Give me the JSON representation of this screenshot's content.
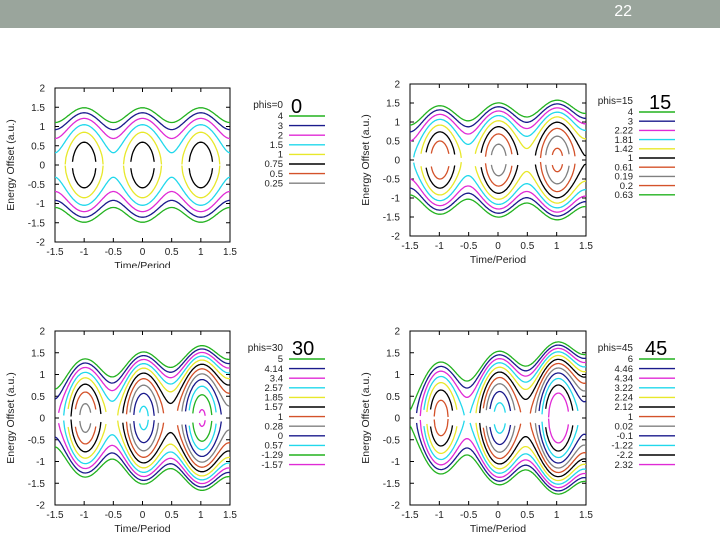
{
  "slide_number": "22",
  "chart_data": [
    {
      "type": "line",
      "panel_label": "0",
      "legend_title": "phis=0",
      "xlabel": "Time/Period",
      "ylabel": "Energy Offset (a.u.)",
      "xlim": [
        -1.5,
        1.5
      ],
      "ylim": [
        -2,
        2
      ],
      "xticks": [
        "-1.5",
        "-1",
        "-0.5",
        "0",
        "0.5",
        "1",
        "1.5"
      ],
      "yticks": [
        "2",
        "1.5",
        "1",
        "0.5",
        "0",
        "-0.5",
        "-1",
        "-1.5",
        "-2"
      ],
      "phi_s_deg": 0,
      "series": [
        {
          "name": "4",
          "color": "#22b21f",
          "level": 4
        },
        {
          "name": "3",
          "color": "#1a1a8c",
          "level": 3
        },
        {
          "name": "2",
          "color": "#e02ad6",
          "level": 2
        },
        {
          "name": "1.5",
          "color": "#21d8ec",
          "level": 1.5
        },
        {
          "name": "1",
          "color": "#e8e82a",
          "level": 1
        },
        {
          "name": "0.75",
          "color": "#000000",
          "level": 0.75
        },
        {
          "name": "0.5",
          "color": "#d4522a",
          "level": 0.5
        },
        {
          "name": "0.25",
          "color": "#808080",
          "level": 0.25
        }
      ]
    },
    {
      "type": "line",
      "panel_label": "15",
      "legend_title": "phis=15",
      "xlabel": "Time/Period",
      "ylabel": "Energy Offset (a.u.)",
      "xlim": [
        -1.5,
        1.5
      ],
      "ylim": [
        -2,
        2
      ],
      "xticks": [
        "-1.5",
        "-1",
        "-0.5",
        "0",
        "0.5",
        "1",
        "1.5"
      ],
      "yticks": [
        "2",
        "1.5",
        "1",
        "0.5",
        "0",
        "-0.5",
        "-1",
        "-1.5",
        "-2"
      ],
      "phi_s_deg": 15,
      "series": [
        {
          "name": "4",
          "color": "#22b21f",
          "level": 4
        },
        {
          "name": "3",
          "color": "#1a1a8c",
          "level": 3
        },
        {
          "name": "2.22",
          "color": "#e02ad6",
          "level": 2.22
        },
        {
          "name": "1.81",
          "color": "#21d8ec",
          "level": 1.81
        },
        {
          "name": "1.42",
          "color": "#e8e82a",
          "level": 1.42
        },
        {
          "name": "1",
          "color": "#000000",
          "level": 1
        },
        {
          "name": "0.61",
          "color": "#d4522a",
          "level": 0.61
        },
        {
          "name": "0.19",
          "color": "#808080",
          "level": 0.19
        },
        {
          "name": "0.2",
          "color": "#d4522a",
          "level": 0.2
        },
        {
          "name": "0.63",
          "color": "#22b21f",
          "level": 0.63
        }
      ]
    },
    {
      "type": "line",
      "panel_label": "30",
      "legend_title": "phis=30",
      "xlabel": "Time/Period",
      "ylabel": "Energy Offset (a.u.)",
      "xlim": [
        -1.5,
        1.5
      ],
      "ylim": [
        -2,
        2
      ],
      "xticks": [
        "-1.5",
        "-1",
        "-0.5",
        "0",
        "0.5",
        "1",
        "1.5"
      ],
      "yticks": [
        "2",
        "1.5",
        "1",
        "0.5",
        "0",
        "-0.5",
        "-1",
        "-1.5",
        "-2"
      ],
      "phi_s_deg": 30,
      "series": [
        {
          "name": "5",
          "color": "#22b21f",
          "level": 5
        },
        {
          "name": "4.14",
          "color": "#1a1a8c",
          "level": 4.14
        },
        {
          "name": "3.4",
          "color": "#e02ad6",
          "level": 3.4
        },
        {
          "name": "2.57",
          "color": "#21d8ec",
          "level": 2.57
        },
        {
          "name": "1.85",
          "color": "#e8e82a",
          "level": 1.85
        },
        {
          "name": "1.57",
          "color": "#000000",
          "level": 1.57
        },
        {
          "name": "1",
          "color": "#d4522a",
          "level": 1
        },
        {
          "name": "0.28",
          "color": "#808080",
          "level": 0.28
        },
        {
          "name": "0",
          "color": "#1a1a8c",
          "level": 0
        },
        {
          "name": "0.57",
          "color": "#21d8ec",
          "level": 0.57
        },
        {
          "name": "-1.29",
          "color": "#22b21f",
          "level": -1.29
        },
        {
          "name": "-1.57",
          "color": "#e02ad6",
          "level": -1.57
        }
      ]
    },
    {
      "type": "line",
      "panel_label": "45",
      "legend_title": "phis=45",
      "xlabel": "Time/Period",
      "ylabel": "Energy Offset (a.u.)",
      "xlim": [
        -1.5,
        1.5
      ],
      "ylim": [
        -2,
        2
      ],
      "xticks": [
        "-1.5",
        "-1",
        "-0.5",
        "0",
        "0.5",
        "1",
        "1.5"
      ],
      "yticks": [
        "2",
        "1.5",
        "1",
        "0.5",
        "0",
        "-0.5",
        "-1",
        "-1.5",
        "-2"
      ],
      "phi_s_deg": 45,
      "series": [
        {
          "name": "6",
          "color": "#22b21f",
          "level": 6
        },
        {
          "name": "4.46",
          "color": "#1a1a8c",
          "level": 4.46
        },
        {
          "name": "4.34",
          "color": "#e02ad6",
          "level": 4.34
        },
        {
          "name": "3.22",
          "color": "#21d8ec",
          "level": 3.22
        },
        {
          "name": "2.24",
          "color": "#e8e82a",
          "level": 2.24
        },
        {
          "name": "2.12",
          "color": "#000000",
          "level": 2.12
        },
        {
          "name": "1",
          "color": "#d4522a",
          "level": 1
        },
        {
          "name": "0.02",
          "color": "#808080",
          "level": 0.02
        },
        {
          "name": "-0.1",
          "color": "#1a1a8c",
          "level": -0.1
        },
        {
          "name": "-1.22",
          "color": "#21d8ec",
          "level": -1.22
        },
        {
          "name": "-2.2",
          "color": "#000000",
          "level": -2.2
        },
        {
          "name": "2.32",
          "color": "#e02ad6",
          "level": 2.32
        }
      ]
    }
  ]
}
